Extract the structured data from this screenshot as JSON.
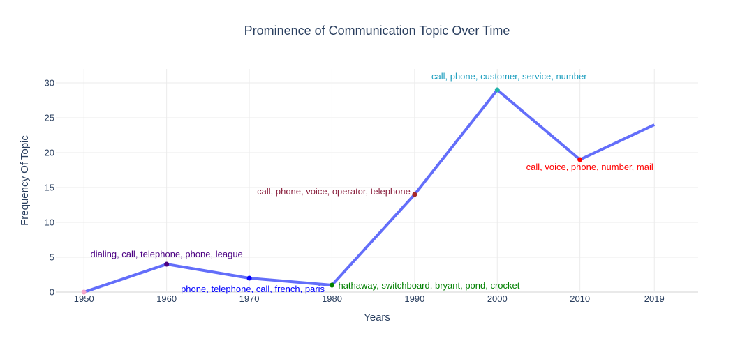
{
  "chart_data": {
    "type": "line",
    "title": "Prominence of Communication Topic Over Time",
    "xlabel": "Years",
    "ylabel": "Frequency Of Topic",
    "categories": [
      "1950",
      "1960",
      "1970",
      "1980",
      "1990",
      "2000",
      "2010",
      "2019"
    ],
    "x": [
      1950,
      1960,
      1970,
      1980,
      1990,
      2000,
      2010,
      2019
    ],
    "values": [
      0,
      4,
      2,
      1,
      14,
      29,
      19,
      24
    ],
    "ylim": [
      0,
      32
    ],
    "yticks": [
      0,
      5,
      10,
      15,
      20,
      25,
      30
    ],
    "line_color": "#636efa",
    "grid": true,
    "markers": [
      {
        "x": 1950,
        "y": 0,
        "color": "#f4a6c8",
        "label": ""
      },
      {
        "x": 1960,
        "y": 4,
        "color": "#4b0082",
        "label": "dialing, call, telephone, phone, league"
      },
      {
        "x": 1970,
        "y": 2,
        "color": "#0000ff",
        "label": "phone, telephone, call, french, paris"
      },
      {
        "x": 1980,
        "y": 1,
        "color": "#008000",
        "label": "hathaway, switchboard, bryant, pond, crocket"
      },
      {
        "x": 1990,
        "y": 14,
        "color": "#a52a2a",
        "label": "call, phone, voice, operator, telephone"
      },
      {
        "x": 2000,
        "y": 29,
        "color": "#20b2aa",
        "label": "call, phone, customer, service, number"
      },
      {
        "x": 2010,
        "y": 19,
        "color": "#ff0000",
        "label": "call, voice, phone, number, mail"
      }
    ],
    "annotation_colors": {
      "1960": "#4b0082",
      "1970": "#0000ff",
      "1980": "#008000",
      "1990": "#8b2340",
      "2000": "#1f9fbf",
      "2010": "#ff0000"
    }
  }
}
